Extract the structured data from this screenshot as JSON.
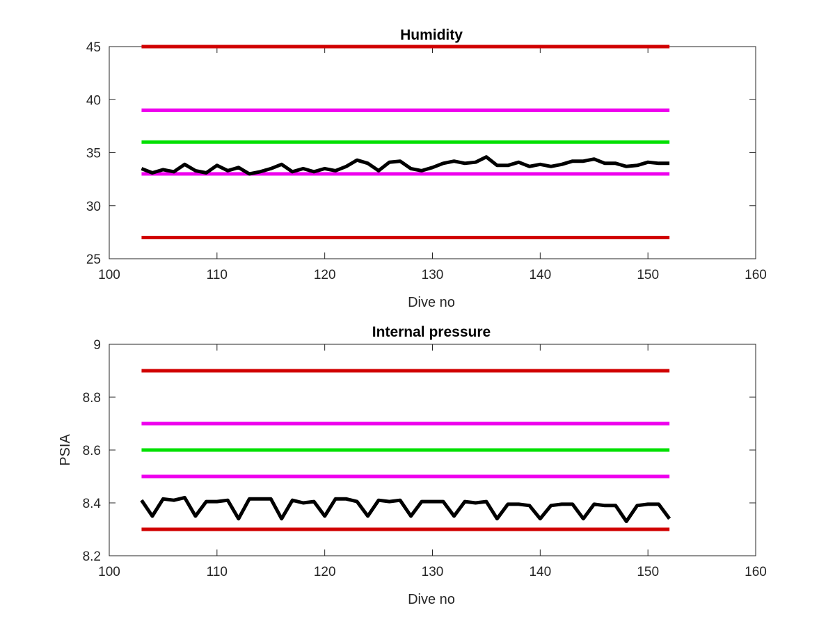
{
  "chart_data": [
    {
      "type": "line",
      "title": "Humidity",
      "xlabel": "Dive no",
      "ylabel": "",
      "xlim": [
        100,
        160
      ],
      "ylim": [
        25,
        45
      ],
      "xticks": [
        "100",
        "110",
        "120",
        "130",
        "140",
        "150",
        "160"
      ],
      "yticks": [
        "25",
        "30",
        "35",
        "40",
        "45"
      ],
      "grid": false,
      "limits": [
        {
          "value": 45,
          "color": "#d10000"
        },
        {
          "value": 39,
          "color": "#ee00ee"
        },
        {
          "value": 36,
          "color": "#00e000"
        },
        {
          "value": 33,
          "color": "#ee00ee"
        },
        {
          "value": 27,
          "color": "#d10000"
        }
      ],
      "limit_x_range": [
        103,
        152
      ],
      "series": [
        {
          "color": "#000000",
          "x": [
            103,
            104,
            105,
            106,
            107,
            108,
            109,
            110,
            111,
            112,
            113,
            114,
            115,
            116,
            117,
            118,
            119,
            120,
            121,
            122,
            123,
            124,
            125,
            126,
            127,
            128,
            129,
            130,
            131,
            132,
            133,
            134,
            135,
            136,
            137,
            138,
            139,
            140,
            141,
            142,
            143,
            144,
            145,
            146,
            147,
            148,
            149,
            150,
            151,
            152
          ],
          "values": [
            33.5,
            33.1,
            33.4,
            33.2,
            33.9,
            33.3,
            33.1,
            33.8,
            33.3,
            33.6,
            33.0,
            33.2,
            33.5,
            33.9,
            33.2,
            33.5,
            33.2,
            33.5,
            33.3,
            33.7,
            34.3,
            34.0,
            33.3,
            34.1,
            34.2,
            33.5,
            33.3,
            33.6,
            34.0,
            34.2,
            34.0,
            34.1,
            34.6,
            33.8,
            33.8,
            34.1,
            33.7,
            33.9,
            33.7,
            33.9,
            34.2,
            34.2,
            34.4,
            34.0,
            34.0,
            33.7,
            33.8,
            34.1,
            34.0,
            34.0
          ]
        }
      ]
    },
    {
      "type": "line",
      "title": "Internal pressure",
      "xlabel": "Dive no",
      "ylabel": "PSIA",
      "xlim": [
        100,
        160
      ],
      "ylim": [
        8.2,
        9
      ],
      "xticks": [
        "100",
        "110",
        "120",
        "130",
        "140",
        "150",
        "160"
      ],
      "yticks": [
        "8.2",
        "8.4",
        "8.6",
        "8.8",
        "9"
      ],
      "grid": false,
      "limits": [
        {
          "value": 8.9,
          "color": "#d10000"
        },
        {
          "value": 8.7,
          "color": "#ee00ee"
        },
        {
          "value": 8.6,
          "color": "#00e000"
        },
        {
          "value": 8.5,
          "color": "#ee00ee"
        },
        {
          "value": 8.3,
          "color": "#d10000"
        }
      ],
      "limit_x_range": [
        103,
        152
      ],
      "series": [
        {
          "color": "#000000",
          "x": [
            103,
            104,
            105,
            106,
            107,
            108,
            109,
            110,
            111,
            112,
            113,
            114,
            115,
            116,
            117,
            118,
            119,
            120,
            121,
            122,
            123,
            124,
            125,
            126,
            127,
            128,
            129,
            130,
            131,
            132,
            133,
            134,
            135,
            136,
            137,
            138,
            139,
            140,
            141,
            142,
            143,
            144,
            145,
            146,
            147,
            148,
            149,
            150,
            151,
            152
          ],
          "values": [
            8.41,
            8.35,
            8.415,
            8.41,
            8.42,
            8.35,
            8.405,
            8.405,
            8.41,
            8.34,
            8.415,
            8.415,
            8.415,
            8.34,
            8.41,
            8.4,
            8.405,
            8.35,
            8.415,
            8.415,
            8.405,
            8.35,
            8.41,
            8.405,
            8.41,
            8.35,
            8.405,
            8.405,
            8.405,
            8.35,
            8.405,
            8.4,
            8.405,
            8.34,
            8.395,
            8.395,
            8.39,
            8.34,
            8.39,
            8.395,
            8.395,
            8.34,
            8.395,
            8.39,
            8.39,
            8.33,
            8.39,
            8.395,
            8.395,
            8.34
          ]
        }
      ]
    }
  ]
}
